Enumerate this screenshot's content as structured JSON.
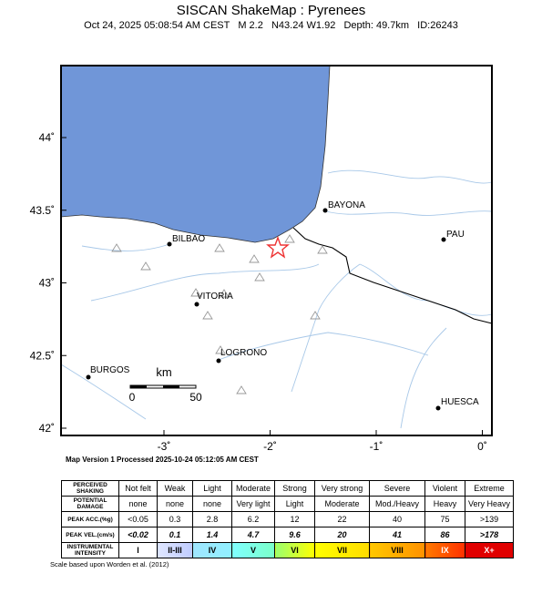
{
  "header": {
    "title": "SISCAN ShakeMap : Pyrenees",
    "subtitle": "Oct 24, 2025 05:08:54 AM CEST   M 2.2   N43.24 W1.92   Depth: 49.7km   ID:26243"
  },
  "map": {
    "lat_ticks": [
      {
        "value": 44,
        "label": "44˚"
      },
      {
        "value": 43.5,
        "label": "43.5˚"
      },
      {
        "value": 43,
        "label": "43˚"
      },
      {
        "value": 42.5,
        "label": "42.5˚"
      },
      {
        "value": 42,
        "label": "42˚"
      }
    ],
    "lon_ticks": [
      {
        "value": -3,
        "label": "-3˚"
      },
      {
        "value": -2,
        "label": "-2˚"
      },
      {
        "value": -1,
        "label": "-1˚"
      },
      {
        "value": 0,
        "label": "0˚"
      }
    ],
    "cities": [
      "BAYONA",
      "PAU",
      "BILBAO",
      "VITORIA",
      "LOGRONO",
      "BURGOS",
      "HUESCA"
    ],
    "scale_bar": {
      "unit": "km",
      "start": "0",
      "end": "50"
    }
  },
  "map_caption": "Map Version 1 Processed 2025-10-24 05:12:05 AM CEST",
  "legend": {
    "rows": [
      [
        "PERCEIVED SHAKING",
        "Not felt",
        "Weak",
        "Light",
        "Moderate",
        "Strong",
        "Very strong",
        "Severe",
        "Violent",
        "Extreme"
      ],
      [
        "POTENTIAL DAMAGE",
        "none",
        "none",
        "none",
        "Very light",
        "Light",
        "Moderate",
        "Mod./Heavy",
        "Heavy",
        "Very Heavy"
      ],
      [
        "PEAK ACC.(%g)",
        "<0.05",
        "0.3",
        "2.8",
        "6.2",
        "12",
        "22",
        "40",
        "75",
        ">139"
      ],
      [
        "PEAK VEL.(cm/s)",
        "<0.02",
        "0.1",
        "1.4",
        "4.7",
        "9.6",
        "20",
        "41",
        "86",
        ">178"
      ],
      [
        "INSTRUMENTAL INTENSITY",
        "I",
        "II-III",
        "IV",
        "V",
        "VI",
        "VII",
        "VIII",
        "IX",
        "X+"
      ]
    ]
  },
  "footnote": "Scale based upon Worden et al. (2012)"
}
